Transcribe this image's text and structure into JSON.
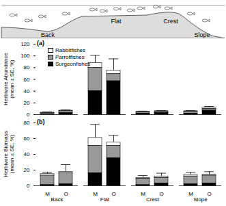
{
  "illustration": {
    "labels": [
      "Back",
      "Flat",
      "Crest",
      "Slope"
    ]
  },
  "chart_data": [
    {
      "type": "bar",
      "stacked": true,
      "title": "(a)",
      "ylabel": "Herbivore Abundance (mean ± SE, %)",
      "groups": [
        "Back",
        "Back",
        "Flat",
        "Flat",
        "Crest",
        "Crest",
        "Slope",
        "Slope"
      ],
      "categories": [
        "M",
        "O",
        "M",
        "O",
        "M",
        "O",
        "M",
        "O"
      ],
      "series": [
        {
          "name": "Rabbitfishes",
          "color": "#ffffff",
          "values": [
            0.5,
            1,
            8,
            6,
            1,
            1,
            1,
            2
          ]
        },
        {
          "name": "Parrotfishes",
          "color": "#999999",
          "values": [
            2,
            3,
            40,
            12,
            2,
            2,
            3,
            3
          ]
        },
        {
          "name": "Surgeonfishes",
          "color": "#000000",
          "values": [
            1,
            3,
            40,
            57,
            2,
            3,
            2,
            7
          ]
        }
      ],
      "errors": [
        1,
        1,
        13,
        20,
        1,
        1,
        1,
        2
      ],
      "ylim": [
        0,
        120
      ],
      "yticks": [
        0,
        20,
        40,
        60,
        80,
        100,
        120
      ],
      "legend": "top-left",
      "tick_labels": "y"
    },
    {
      "type": "bar",
      "stacked": true,
      "title": "(b)",
      "ylabel": "Herbivore Biomass (mean ± SE, %)",
      "groups": [
        "Back",
        "Back",
        "Flat",
        "Flat",
        "Crest",
        "Crest",
        "Slope",
        "Slope"
      ],
      "categories": [
        "M",
        "O",
        "M",
        "O",
        "M",
        "O",
        "M",
        "O"
      ],
      "series": [
        {
          "name": "Rabbitfishes",
          "color": "#ffffff",
          "values": [
            2,
            2,
            10,
            4,
            1,
            2,
            2,
            1
          ]
        },
        {
          "name": "Parrotfishes",
          "color": "#999999",
          "values": [
            12,
            14,
            35,
            16,
            8,
            7,
            10,
            10
          ]
        },
        {
          "name": "Surgeonfishes",
          "color": "#000000",
          "values": [
            1,
            2,
            16,
            35,
            1,
            3,
            2,
            3
          ]
        }
      ],
      "errors": [
        2,
        9,
        17,
        9,
        3,
        4,
        3,
        4
      ],
      "ylim": [
        0,
        80
      ],
      "yticks": [
        0,
        20,
        40,
        60,
        80
      ]
    }
  ]
}
